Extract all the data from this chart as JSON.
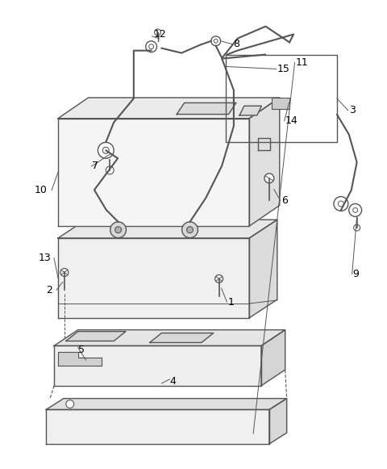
{
  "bg_color": "#ffffff",
  "line_color": "#555555",
  "text_color": "#000000",
  "fig_width": 4.8,
  "fig_height": 5.81
}
